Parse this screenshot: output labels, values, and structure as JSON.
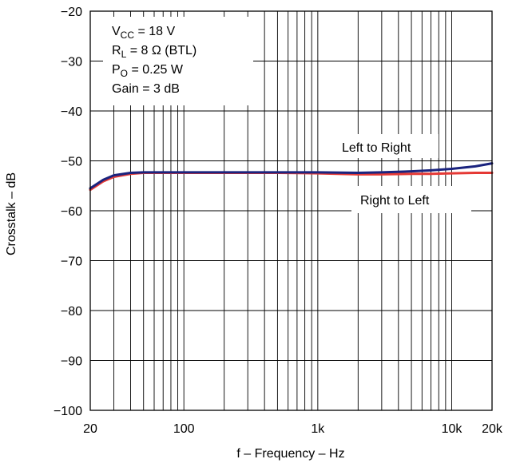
{
  "chart_data": {
    "type": "line",
    "title": "",
    "xlabel": "f – Frequency – Hz",
    "ylabel": "Crosstalk – dB",
    "x_scale": "log",
    "xlim": [
      20,
      20000
    ],
    "ylim": [
      -100,
      -20
    ],
    "grid": true,
    "x_ticks": [
      {
        "value": 20,
        "label": "20"
      },
      {
        "value": 100,
        "label": "100"
      },
      {
        "value": 1000,
        "label": "1k"
      },
      {
        "value": 10000,
        "label": "10k"
      },
      {
        "value": 20000,
        "label": "20k"
      }
    ],
    "y_ticks": [
      {
        "value": -20,
        "label": "−20"
      },
      {
        "value": -30,
        "label": "−30"
      },
      {
        "value": -40,
        "label": "−40"
      },
      {
        "value": -50,
        "label": "−50"
      },
      {
        "value": -60,
        "label": "−60"
      },
      {
        "value": -70,
        "label": "−70"
      },
      {
        "value": -80,
        "label": "−80"
      },
      {
        "value": -90,
        "label": "−90"
      },
      {
        "value": -100,
        "label": "−100"
      }
    ],
    "conditions": [
      {
        "main": "V",
        "sub": "CC",
        "rest": " = 18 V"
      },
      {
        "main": "R",
        "sub": "L",
        "rest": " = 8 Ω (BTL)"
      },
      {
        "main": "P",
        "sub": "O",
        "rest": " = 0.25 W"
      },
      {
        "main": "Gain = 3 dB",
        "sub": "",
        "rest": ""
      }
    ],
    "series": [
      {
        "name": "Left to Right",
        "color": "#1a237e",
        "x": [
          20,
          25,
          30,
          40,
          50,
          100,
          200,
          500,
          1000,
          2000,
          3000,
          5000,
          7000,
          10000,
          15000,
          20000
        ],
        "y": [
          -55.5,
          -53.8,
          -52.9,
          -52.4,
          -52.3,
          -52.3,
          -52.3,
          -52.3,
          -52.3,
          -52.4,
          -52.3,
          -52.1,
          -51.9,
          -51.6,
          -51.1,
          -50.5
        ]
      },
      {
        "name": "Right to Left",
        "color": "#e53935",
        "x": [
          20,
          25,
          30,
          40,
          50,
          100,
          200,
          500,
          1000,
          2000,
          3000,
          5000,
          7000,
          10000,
          15000,
          20000
        ],
        "y": [
          -55.8,
          -54.1,
          -53.2,
          -52.6,
          -52.4,
          -52.4,
          -52.4,
          -52.4,
          -52.5,
          -52.7,
          -52.7,
          -52.6,
          -52.6,
          -52.5,
          -52.4,
          -52.4
        ]
      }
    ]
  }
}
